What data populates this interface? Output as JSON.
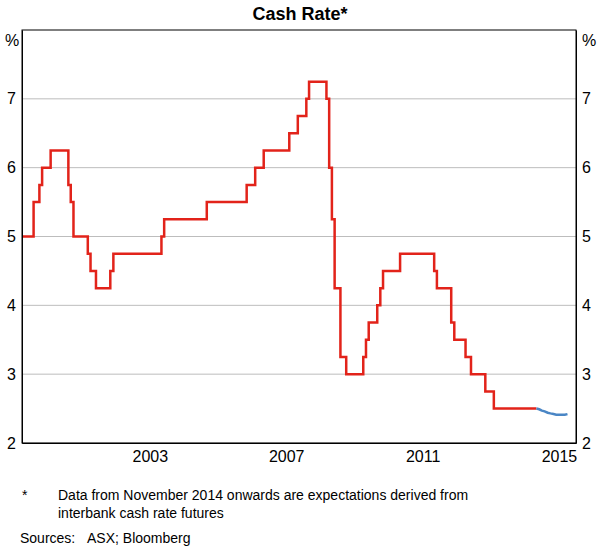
{
  "chart_data": {
    "type": "line",
    "title": "Cash Rate*",
    "ylabel": "%",
    "xlim": [
      1999.75,
      2016.0
    ],
    "xticks": [
      {
        "value": 2003.5,
        "label": "2003"
      },
      {
        "value": 2007.5,
        "label": "2007"
      },
      {
        "value": 2011.5,
        "label": "2011"
      },
      {
        "value": 2015.5,
        "label": "2015"
      }
    ],
    "ylim": [
      2,
      8
    ],
    "yticks": [
      2,
      3,
      4,
      5,
      6,
      7
    ],
    "grid": true,
    "series": [
      {
        "type": "step",
        "color": "#e2231a",
        "line_style": "solid",
        "x": [
          1999.75,
          2000.09,
          2000.26,
          2000.34,
          2000.59,
          2001.11,
          2001.18,
          2001.26,
          2001.68,
          2001.76,
          2001.92,
          2002.34,
          2002.43,
          2003.84,
          2003.92,
          2005.17,
          2006.34,
          2006.59,
          2006.84,
          2007.59,
          2007.84,
          2008.09,
          2008.17,
          2008.68,
          2008.76,
          2008.84,
          2008.92,
          2009.09,
          2009.26,
          2009.76,
          2009.84,
          2009.92,
          2010.17,
          2010.26,
          2010.34,
          2010.84,
          2011.84,
          2011.92,
          2012.34,
          2012.43,
          2012.76,
          2012.92,
          2013.34,
          2013.59,
          2014.84
        ],
        "values": [
          5.0,
          5.5,
          5.75,
          6.0,
          6.25,
          5.75,
          5.5,
          5.0,
          4.75,
          4.5,
          4.25,
          4.5,
          4.75,
          5.0,
          5.25,
          5.5,
          5.75,
          6.0,
          6.25,
          6.5,
          6.75,
          7.0,
          7.25,
          7.0,
          6.0,
          5.25,
          4.25,
          3.25,
          3.0,
          3.25,
          3.5,
          3.75,
          4.0,
          4.25,
          4.5,
          4.75,
          4.5,
          4.25,
          3.75,
          3.5,
          3.25,
          3.0,
          2.75,
          2.5,
          2.5
        ]
      },
      {
        "type": "line",
        "color": "#4a86c5",
        "line_style": "solid",
        "x": [
          2014.84,
          2014.92,
          2015.0,
          2015.08,
          2015.17,
          2015.25,
          2015.34,
          2015.42,
          2015.5,
          2015.59,
          2015.67,
          2015.75
        ],
        "values": [
          2.5,
          2.49,
          2.47,
          2.46,
          2.44,
          2.43,
          2.42,
          2.41,
          2.41,
          2.41,
          2.41,
          2.42
        ]
      }
    ],
    "footnote_marker": "*",
    "footnotes": [
      "Data from November 2014 onwards are expectations derived from",
      "interbank cash rate futures"
    ],
    "source_label": "Sources:",
    "source": "ASX; Bloomberg"
  }
}
